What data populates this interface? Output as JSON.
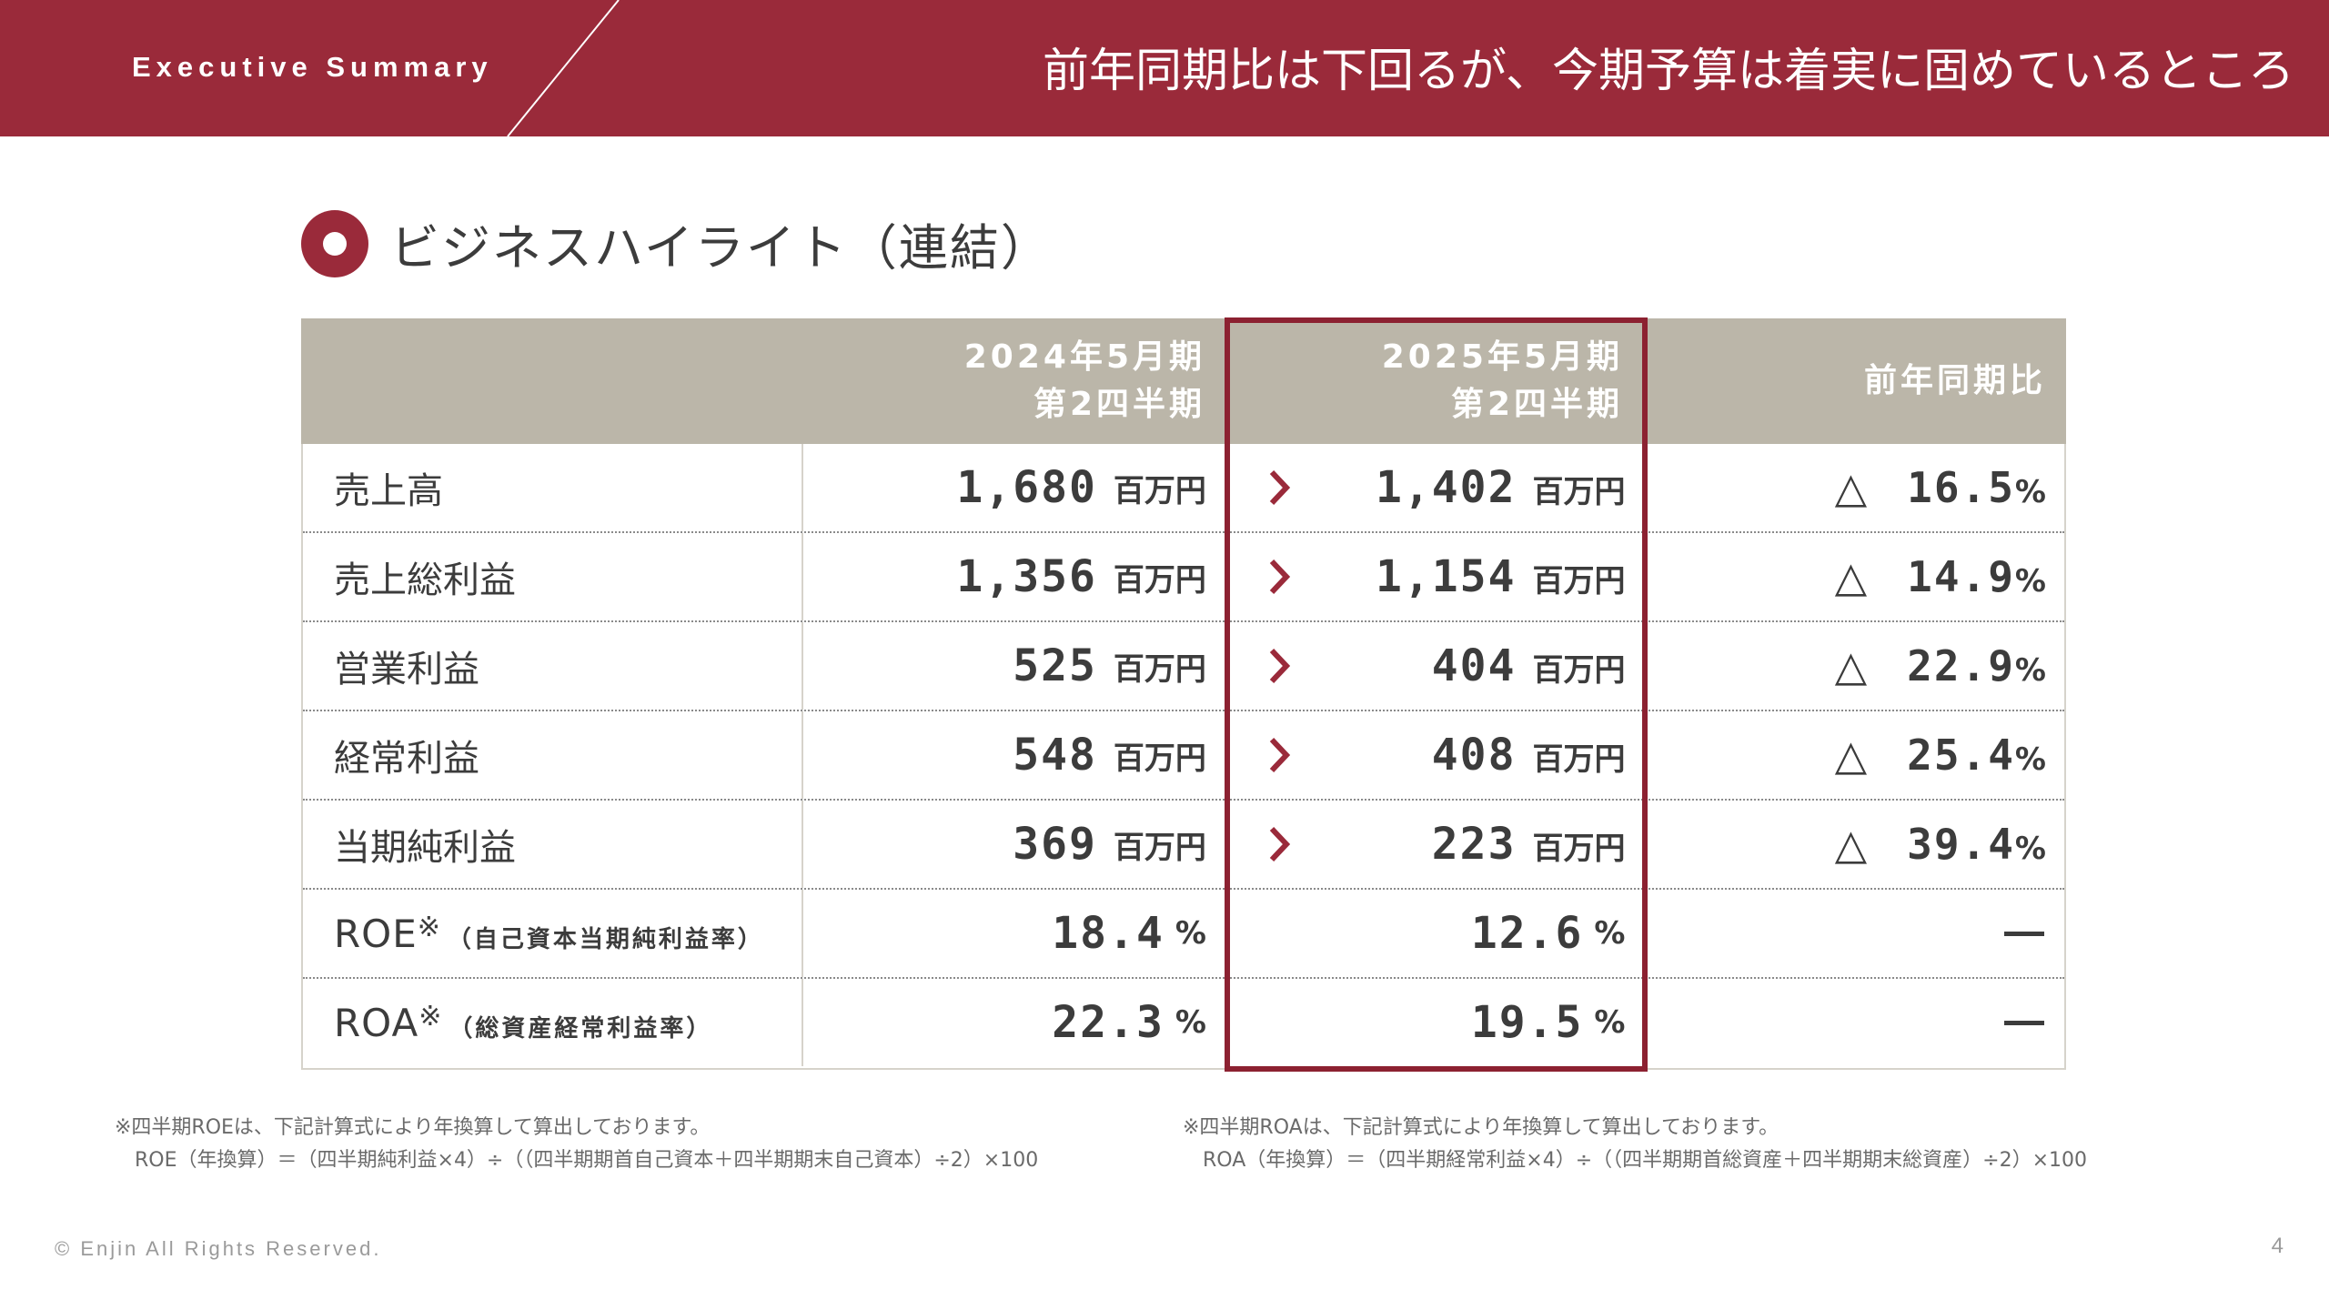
{
  "header": {
    "section_label": "Executive Summary",
    "headline": "前年同期比は下回るが、今期予算は着実に固めているところ"
  },
  "section_title": "ビジネスハイライト（連結）",
  "table": {
    "columns": [
      {
        "label": ""
      },
      {
        "line1": "2024年5月期",
        "line2": "第2四半期"
      },
      {
        "line1": "2025年5月期",
        "line2": "第2四半期"
      },
      {
        "label": "前年同期比"
      }
    ],
    "rows": [
      {
        "label": "売上高",
        "prev": "1,680",
        "curr": "1,402",
        "unit": "百万円",
        "change": "16.5",
        "change_unit": "%"
      },
      {
        "label": "売上総利益",
        "prev": "1,356",
        "curr": "1,154",
        "unit": "百万円",
        "change": "14.9",
        "change_unit": "%"
      },
      {
        "label": "営業利益",
        "prev": "525",
        "curr": "404",
        "unit": "百万円",
        "change": "22.9",
        "change_unit": "%"
      },
      {
        "label": "経常利益",
        "prev": "548",
        "curr": "408",
        "unit": "百万円",
        "change": "25.4",
        "change_unit": "%"
      },
      {
        "label": "当期純利益",
        "prev": "369",
        "curr": "223",
        "unit": "百万円",
        "change": "39.4",
        "change_unit": "%"
      }
    ],
    "decrease_symbol": "△",
    "ratio_rows": [
      {
        "label": "ROE",
        "mark": "※",
        "sub": "（自己資本当期純利益率）",
        "prev": "18.4",
        "curr": "12.6",
        "unit": "%"
      },
      {
        "label": "ROA",
        "mark": "※",
        "sub": "（総資産経常利益率）",
        "prev": "22.3",
        "curr": "19.5",
        "unit": "%"
      }
    ]
  },
  "notes": {
    "left": {
      "line1": "※四半期ROEは、下記計算式により年換算して算出しております。",
      "line2": "ROE（年換算）＝（四半期純利益×4）÷（（四半期期首自己資本＋四半期期末自己資本）÷2）×100"
    },
    "right": {
      "line1": "※四半期ROAは、下記計算式により年換算して算出しております。",
      "line2": "ROA（年換算）＝（四半期経常利益×4）÷（（四半期期首総資産＋四半期期末総資産）÷2）×100"
    }
  },
  "footer": {
    "copyright": "© Enjin All Rights Reserved.",
    "page_number": "4"
  },
  "colors": {
    "brand": "#9a2a3a",
    "table_header": "#bbb6a9",
    "highlight": "#8c2131"
  }
}
